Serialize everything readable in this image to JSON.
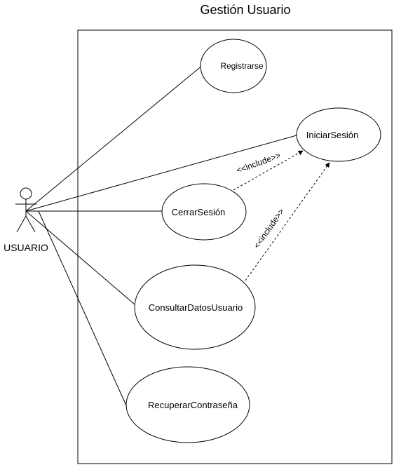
{
  "diagram": {
    "system_title": "Gestión Usuario",
    "actor": {
      "name": "USUARIO"
    },
    "use_cases": {
      "registrarse": "Registrarse",
      "iniciar_sesion": "IniciarSesión",
      "cerrar_sesion": "CerrarSesión",
      "consultar_datos": "ConsultarDatosUsuario",
      "recuperar_contrasena": "RecuperarContraseña"
    },
    "relations": {
      "include_1": "<<include>>",
      "include_2": "<<include>>"
    }
  }
}
